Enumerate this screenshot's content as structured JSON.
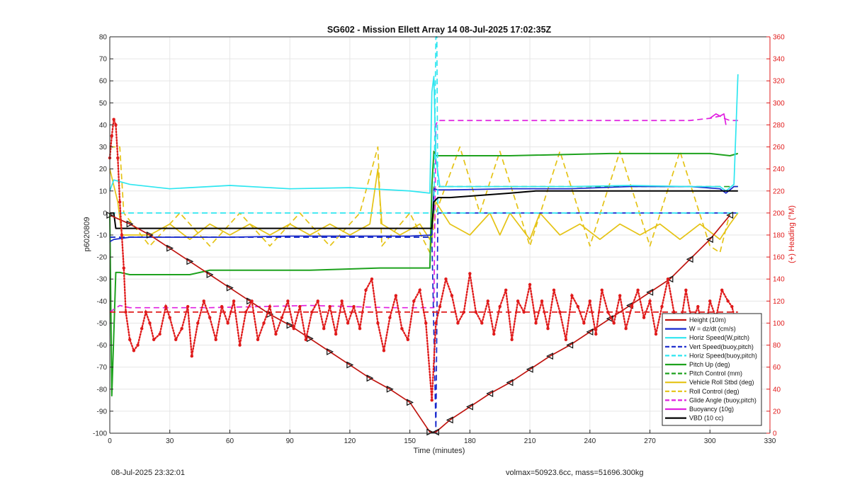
{
  "chart_data": {
    "type": "line",
    "title": "SG602 - Mission Ellett Array 14 08-Jul-2025 17:02:35Z",
    "xlabel": "Time (minutes)",
    "ylabel": "p6020809",
    "ylabel_right": "(+) Heading (°M)",
    "xlim": [
      0,
      330
    ],
    "ylim": [
      -100,
      80
    ],
    "ylim_right": [
      0,
      360
    ],
    "x_ticks": [
      0,
      30,
      60,
      90,
      120,
      150,
      180,
      210,
      240,
      270,
      300,
      330
    ],
    "y_ticks": [
      -100,
      -90,
      -80,
      -70,
      -60,
      -50,
      -40,
      -30,
      -20,
      -10,
      0,
      10,
      20,
      30,
      40,
      50,
      60,
      70,
      80
    ],
    "y_ticks_right": [
      0,
      20,
      40,
      60,
      80,
      100,
      120,
      140,
      160,
      180,
      200,
      220,
      240,
      260,
      280,
      300,
      320,
      340,
      360
    ],
    "grid": true,
    "legend_position": "bottom-right",
    "colors": {
      "heading": "#e01b1b",
      "depth": "#c0140f",
      "w": "#1526cc",
      "horiz_speed_w": "#2ee6f0",
      "vert_speed_buoy": "#1526cc",
      "horiz_speed_buoy": "#2ee6f0",
      "pitch_up": "#1ea21e",
      "pitch_control": "#1ea21e",
      "vehicle_roll": "#e5c315",
      "roll_control": "#e5c315",
      "glide_angle": "#e020e0",
      "buoyancy": "#e020e0",
      "vbd": "#000000"
    },
    "series": [
      {
        "key": "depth",
        "name": "Height (10m)",
        "style": "solid-triangle-markers",
        "x": [
          0,
          10,
          20,
          30,
          40,
          50,
          60,
          70,
          80,
          90,
          100,
          110,
          120,
          130,
          140,
          150,
          160,
          163,
          170,
          180,
          190,
          200,
          210,
          220,
          230,
          240,
          250,
          260,
          270,
          280,
          290,
          300,
          310
        ],
        "y": [
          -1,
          -5,
          -10,
          -16,
          -22,
          -28,
          -34,
          -40,
          -46,
          -51,
          -57,
          -63,
          -69,
          -75,
          -80,
          -86,
          -99.5,
          -99.5,
          -94,
          -88,
          -82,
          -77,
          -71,
          -65,
          -60,
          -54,
          -48,
          -42,
          -36,
          -30,
          -21,
          -12,
          -1
        ]
      },
      {
        "key": "w",
        "name": "W = dz/dt (cm/s)",
        "style": "solid",
        "x": [
          0,
          2,
          10,
          30,
          60,
          90,
          120,
          150,
          161,
          162,
          164,
          170,
          200,
          230,
          260,
          290,
          305,
          308,
          312,
          314
        ],
        "y": [
          -13,
          -12,
          -11,
          -11,
          -11,
          -10.5,
          -10.5,
          -10.5,
          -10,
          11,
          10.5,
          10.5,
          11,
          11,
          12,
          12,
          11,
          9,
          12,
          12
        ]
      },
      {
        "key": "horiz_speed_w",
        "name": "Horiz Speed(W,pitch)",
        "style": "solid",
        "x": [
          0,
          2,
          10,
          30,
          60,
          90,
          120,
          150,
          160,
          161,
          162,
          163,
          165,
          200,
          230,
          260,
          290,
          305,
          308,
          312,
          314
        ],
        "y": [
          10,
          15,
          13,
          11,
          12.5,
          11,
          11.5,
          10,
          9,
          55,
          62,
          25,
          12,
          12,
          12,
          12.5,
          12,
          12,
          10,
          13,
          63
        ]
      },
      {
        "key": "vert_speed_buoy",
        "name": "Vert Speed(buoy,pitch)",
        "style": "dashed",
        "x": [
          0,
          160,
          161,
          163,
          163,
          164,
          314
        ],
        "y": [
          -11,
          -11,
          -11,
          -98,
          -100,
          0,
          0
        ]
      },
      {
        "key": "horiz_speed_buoy",
        "name": "Horiz Speed(buoy,pitch)",
        "style": "dashed",
        "x": [
          0,
          162,
          163,
          163.5,
          164,
          314
        ],
        "y": [
          0,
          0,
          80,
          80,
          0,
          0
        ]
      },
      {
        "key": "pitch_up",
        "name": "Pitch Up (deg)",
        "style": "solid",
        "x": [
          0,
          1,
          3,
          5,
          10,
          40,
          50,
          100,
          135,
          160,
          161,
          162,
          163,
          165,
          200,
          250,
          300,
          310,
          314
        ],
        "y": [
          0,
          -83,
          -27,
          -27,
          -28,
          -28,
          -26,
          -26,
          -25,
          -25,
          12,
          28,
          26,
          26,
          26,
          27,
          27,
          26,
          27
        ]
      },
      {
        "key": "pitch_control",
        "name": "Pitch Control (mm)",
        "style": "dashed",
        "x": [
          0,
          161,
          162,
          314
        ],
        "y": [
          -11,
          -11,
          12,
          12
        ]
      },
      {
        "key": "vehicle_roll",
        "name": "Vehicle Roll Stbd (deg)",
        "style": "solid",
        "x": [
          0,
          4,
          6,
          20,
          30,
          40,
          50,
          60,
          70,
          80,
          90,
          100,
          110,
          120,
          130,
          134,
          136,
          145,
          155,
          160,
          163,
          170,
          180,
          190,
          195,
          200,
          210,
          215,
          225,
          235,
          245,
          255,
          265,
          275,
          285,
          295,
          305,
          310,
          314
        ],
        "y": [
          20,
          5,
          -10,
          -10,
          -5,
          -12,
          -5,
          -10,
          -5,
          -10,
          -5,
          -10,
          -5,
          -10,
          -5,
          20,
          -5,
          -10,
          -5,
          -12,
          5,
          -5,
          -10,
          0,
          -10,
          0,
          -12,
          0,
          -10,
          -5,
          -12,
          -5,
          -10,
          -5,
          -12,
          -5,
          -12,
          -5,
          0
        ]
      },
      {
        "key": "roll_control",
        "name": "Roll Control (deg)",
        "style": "dashed",
        "x": [
          0,
          5,
          7,
          20,
          35,
          50,
          65,
          80,
          95,
          110,
          125,
          134,
          136,
          150,
          160,
          163,
          175,
          185,
          195,
          210,
          225,
          240,
          255,
          270,
          285,
          300,
          305,
          310,
          314
        ],
        "y": [
          30,
          30,
          0,
          -15,
          0,
          -15,
          0,
          -15,
          0,
          -15,
          0,
          30,
          -15,
          0,
          -18,
          0,
          30,
          0,
          28,
          -15,
          28,
          -15,
          28,
          -15,
          28,
          -15,
          -18,
          0,
          0
        ]
      },
      {
        "key": "glide_angle",
        "name": "Glide Angle (buoy,pitch)",
        "style": "dashed",
        "x": [
          0,
          5,
          10,
          50,
          100,
          140,
          160,
          162,
          163,
          164,
          200,
          250,
          290,
          300,
          305,
          307,
          310,
          314
        ],
        "y": [
          -45,
          -42,
          -43,
          -43,
          -42,
          -43,
          -43,
          -43,
          40,
          42,
          42,
          42,
          42,
          43,
          44,
          43,
          42,
          42
        ]
      },
      {
        "key": "buoyancy",
        "name": "Buoyancy (10g)",
        "style": "solid",
        "x": [
          300,
          303,
          305,
          307,
          308
        ],
        "y": [
          43,
          45,
          44,
          45,
          40
        ]
      },
      {
        "key": "vbd",
        "name": "VBD (10 cc)",
        "style": "solid",
        "x": [
          0,
          2,
          3,
          10,
          60,
          120,
          161,
          162,
          164,
          170,
          200,
          213,
          230,
          260,
          290,
          314
        ],
        "y": [
          0,
          0,
          -7,
          -7,
          -7,
          -7,
          -7,
          5,
          7,
          7,
          9,
          10,
          10,
          10,
          10,
          10
        ]
      },
      {
        "key": "heading",
        "name": "",
        "axis": "right",
        "style": "dots",
        "x": [
          0,
          1,
          2,
          3,
          4,
          5,
          6,
          7,
          8,
          10,
          12,
          14,
          16,
          18,
          20,
          22,
          25,
          28,
          30,
          33,
          36,
          39,
          41,
          44,
          47,
          50,
          53,
          56,
          59,
          62,
          65,
          68,
          71,
          74,
          77,
          80,
          83,
          86,
          89,
          92,
          95,
          98,
          101,
          104,
          107,
          110,
          113,
          116,
          119,
          122,
          125,
          128,
          131,
          134,
          137,
          140,
          143,
          146,
          149,
          152,
          155,
          158,
          161,
          163,
          165,
          168,
          171,
          174,
          177,
          180,
          183,
          186,
          189,
          192,
          195,
          198,
          201,
          204,
          207,
          210,
          213,
          216,
          219,
          222,
          225,
          228,
          231,
          234,
          237,
          240,
          243,
          246,
          249,
          252,
          255,
          258,
          261,
          264,
          267,
          270,
          273,
          276,
          279,
          282,
          285,
          288,
          291,
          294,
          297,
          300,
          303,
          306,
          309,
          311,
          313
        ],
        "y": [
          250,
          270,
          285,
          280,
          250,
          210,
          180,
          150,
          110,
          85,
          75,
          80,
          95,
          110,
          100,
          85,
          90,
          115,
          105,
          85,
          95,
          115,
          70,
          100,
          120,
          105,
          85,
          115,
          100,
          120,
          80,
          110,
          120,
          85,
          100,
          115,
          90,
          105,
          120,
          95,
          115,
          85,
          110,
          120,
          95,
          115,
          90,
          120,
          100,
          115,
          95,
          130,
          140,
          100,
          75,
          105,
          125,
          95,
          85,
          120,
          130,
          100,
          30,
          100,
          115,
          140,
          125,
          100,
          110,
          145,
          110,
          100,
          120,
          90,
          115,
          130,
          85,
          120,
          110,
          135,
          100,
          120,
          95,
          130,
          110,
          85,
          125,
          115,
          100,
          120,
          90,
          130,
          110,
          100,
          125,
          95,
          115,
          130,
          105,
          120,
          90,
          115,
          140,
          110,
          95,
          130,
          100,
          115,
          85,
          120,
          105,
          130,
          120,
          115,
          100
        ]
      },
      {
        "key": "heading_ref",
        "name": "",
        "axis": "right",
        "style": "dashed",
        "x": [
          0,
          314
        ],
        "y": [
          110,
          110
        ]
      }
    ]
  },
  "footer": {
    "timestamp": "08-Jul-2025 23:32:01",
    "summary": "volmax=50923.6cc, mass=51696.300kg"
  }
}
